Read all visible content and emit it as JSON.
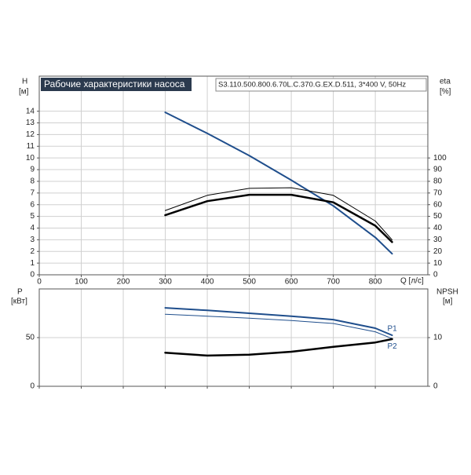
{
  "chart_data": [
    {
      "type": "line",
      "title": "Рабочие характеристики насоса",
      "subtitle": "S3.110.500.800.6.70L.C.370.G.EX.D.511, 3*400 V, 50Hz",
      "x_label": "Q [л/с]",
      "y_label": "H",
      "y_unit": "[м]",
      "y2_label": "eta",
      "y2_unit": "[%]",
      "x": [
        300,
        400,
        500,
        600,
        700,
        800,
        840
      ],
      "xlim": [
        0,
        925
      ],
      "xticks": [
        0,
        100,
        200,
        300,
        400,
        500,
        600,
        700,
        800
      ],
      "ylim": [
        0,
        17
      ],
      "yticks": [
        0,
        1,
        2,
        3,
        4,
        5,
        6,
        7,
        8,
        9,
        10,
        11,
        12,
        13,
        14
      ],
      "y2lim": [
        0,
        170
      ],
      "y2ticks": [
        0,
        10,
        20,
        30,
        40,
        50,
        60,
        70,
        80,
        90,
        100
      ],
      "grid": true,
      "series": [
        {
          "color": "#1f4e8c",
          "values": [
            13.9,
            12.1,
            10.2,
            8.1,
            5.9,
            3.2,
            1.8
          ]
        },
        {
          "color": "#000000",
          "axis": "y2",
          "values": [
            55,
            68,
            74,
            74.5,
            68,
            46,
            30
          ]
        },
        {
          "color": "#000000",
          "axis": "y2",
          "values": [
            51,
            63,
            68.5,
            68.5,
            62,
            42,
            28
          ]
        }
      ]
    },
    {
      "type": "line",
      "y_label": "P",
      "y_unit": "[кВт]",
      "y2_label": "NPSH",
      "y2_unit": "[м]",
      "x": [
        300,
        400,
        500,
        600,
        700,
        800,
        840
      ],
      "xlim": [
        0,
        925
      ],
      "xticks": [
        0,
        100,
        200,
        300,
        400,
        500,
        600,
        700,
        800
      ],
      "ylim": [
        0,
        100
      ],
      "yticks": [
        0,
        50
      ],
      "y2lim": [
        0,
        20
      ],
      "y2ticks": [
        0,
        10
      ],
      "grid": true,
      "series": [
        {
          "name": "P1",
          "color": "#1f4e8c",
          "values": [
            80.6,
            78,
            75,
            72,
            68.5,
            59.7,
            52.4
          ]
        },
        {
          "name": "P2",
          "color": "#1f4e8c",
          "values": [
            74,
            72,
            70,
            67.5,
            64.5,
            56,
            49
          ]
        },
        {
          "color": "#000000",
          "axis": "y2",
          "values": [
            6.9,
            6.3,
            6.5,
            7.1,
            8.1,
            9,
            9.7
          ]
        }
      ]
    }
  ]
}
